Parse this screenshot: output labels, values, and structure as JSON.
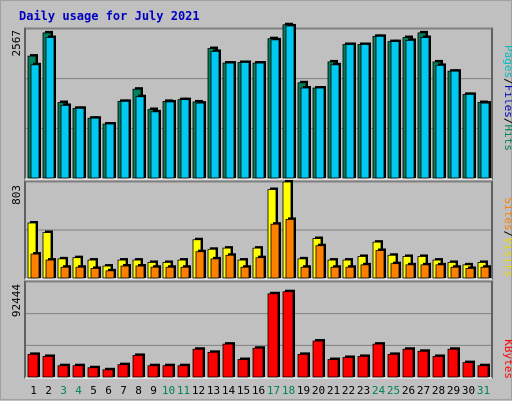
{
  "chart_data": {
    "type": "bar",
    "title": "Daily usage for July 2021",
    "x": [
      "1",
      "2",
      "3",
      "4",
      "5",
      "6",
      "7",
      "8",
      "9",
      "10",
      "11",
      "12",
      "13",
      "14",
      "15",
      "16",
      "17",
      "18",
      "19",
      "20",
      "21",
      "22",
      "23",
      "24",
      "25",
      "26",
      "27",
      "28",
      "29",
      "30",
      "31"
    ],
    "weekend_days": [
      3,
      4,
      10,
      11,
      17,
      18,
      24,
      25,
      31
    ],
    "panels": [
      {
        "name": "hits-files-pages",
        "ymax_label": "2567",
        "ymax": 2567,
        "legend": {
          "pages": "Pages",
          "files": "Files",
          "hits": "Hits",
          "sep": "/"
        },
        "series": [
          {
            "name": "Hits",
            "color": "#00805c",
            "values": [
              2100,
              2500,
              1300,
              1200,
              1030,
              930,
              1320,
              1530,
              1180,
              1320,
              1350,
              1310,
              2230,
              1980,
              1990,
              1980,
              2400,
              2640,
              1640,
              1550,
              2000,
              2300,
              2300,
              2440,
              2350,
              2420,
              2500,
              2000,
              1840,
              1440,
              1300
            ]
          },
          {
            "name": "Files",
            "color": "#00c8f0",
            "values": [
              1950,
              2420,
              1250,
              1200,
              1030,
              930,
              1320,
              1400,
              1140,
              1310,
              1350,
              1290,
              2180,
              1980,
              1990,
              1980,
              2380,
              2620,
              1550,
              1550,
              1950,
              2300,
              2300,
              2440,
              2350,
              2370,
              2420,
              1940,
              1840,
              1440,
              1290
            ]
          }
        ]
      },
      {
        "name": "visits-sites",
        "ymax_label": "803",
        "ymax": 803,
        "legend": {
          "sites": "Sites",
          "visits": "Visits",
          "sep": "/"
        },
        "series": [
          {
            "name": "Visits",
            "color": "#ffff00",
            "values": [
              460,
              380,
              160,
              170,
              150,
              100,
              150,
              150,
              130,
              130,
              150,
              320,
              240,
              250,
              150,
              250,
              740,
              803,
              160,
              330,
              150,
              150,
              180,
              300,
              190,
              180,
              180,
              150,
              130,
              110,
              130
            ]
          },
          {
            "name": "Sites",
            "color": "#ff8000",
            "values": [
              200,
              150,
              90,
              90,
              80,
              60,
              100,
              100,
              90,
              90,
              90,
              220,
              160,
              190,
              90,
              170,
              450,
              490,
              90,
              270,
              90,
              90,
              110,
              230,
              120,
              110,
              110,
              110,
              90,
              80,
              90
            ]
          }
        ]
      },
      {
        "name": "kbytes",
        "ymax_label": "92444",
        "ymax": 92444,
        "legend": {
          "kbytes": "KBytes"
        },
        "series": [
          {
            "name": "KBytes",
            "color": "#ff0000",
            "values": [
              22000,
              20000,
              11000,
              11000,
              9000,
              7000,
              12000,
              21000,
              11000,
              11000,
              11000,
              27000,
              24000,
              32000,
              17000,
              28000,
              81000,
              83000,
              22000,
              35000,
              17000,
              19000,
              20000,
              32000,
              22000,
              27000,
              25000,
              20000,
              27000,
              14000,
              11000
            ]
          }
        ]
      }
    ]
  }
}
